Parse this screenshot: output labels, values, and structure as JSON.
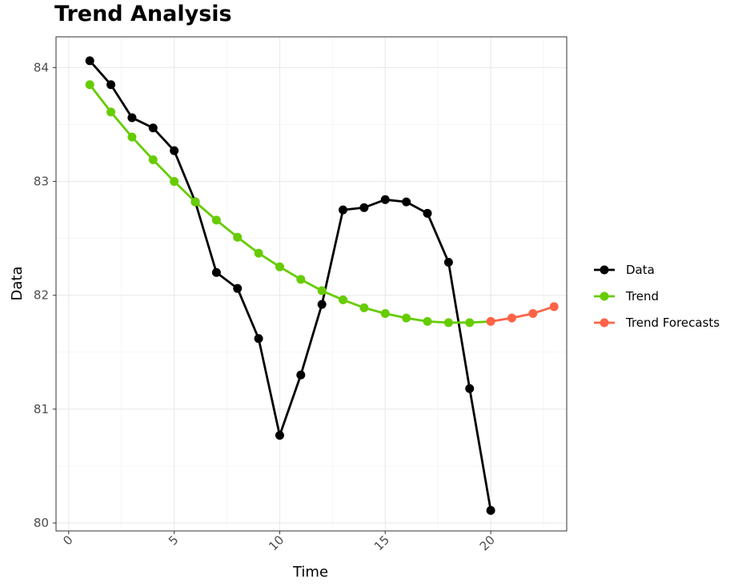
{
  "chart_data": {
    "type": "line",
    "title": "Trend Analysis",
    "xlabel": "Time",
    "ylabel": "Data",
    "xlim": [
      -0.6,
      23.6
    ],
    "ylim": [
      79.93,
      84.27
    ],
    "x_ticks": [
      0,
      5,
      10,
      15,
      20
    ],
    "y_ticks": [
      80,
      81,
      82,
      83,
      84
    ],
    "grid": true,
    "legend_position": "right",
    "series": [
      {
        "name": "Data",
        "color": "#000000",
        "x": [
          1,
          2,
          3,
          4,
          5,
          6,
          7,
          8,
          9,
          10,
          11,
          12,
          13,
          14,
          15,
          16,
          17,
          18,
          19,
          20
        ],
        "y": [
          84.06,
          83.85,
          83.56,
          83.47,
          83.27,
          82.82,
          82.2,
          82.06,
          81.62,
          80.77,
          81.3,
          81.92,
          82.75,
          82.77,
          82.84,
          82.82,
          82.72,
          82.29,
          81.18,
          80.11
        ]
      },
      {
        "name": "Trend",
        "color": "#66CC00",
        "x": [
          1,
          2,
          3,
          4,
          5,
          6,
          7,
          8,
          9,
          10,
          11,
          12,
          13,
          14,
          15,
          16,
          17,
          18,
          19
        ],
        "y": [
          83.85,
          83.61,
          83.39,
          83.19,
          83.0,
          82.82,
          82.66,
          82.51,
          82.37,
          82.25,
          82.14,
          82.04,
          81.96,
          81.89,
          81.84,
          81.8,
          81.77,
          81.76,
          81.76
        ]
      },
      {
        "name": "Trend Forecasts",
        "color": "#FF6347",
        "x": [
          20,
          21,
          22,
          23
        ],
        "y": [
          81.77,
          81.8,
          81.84,
          81.9
        ]
      }
    ]
  }
}
